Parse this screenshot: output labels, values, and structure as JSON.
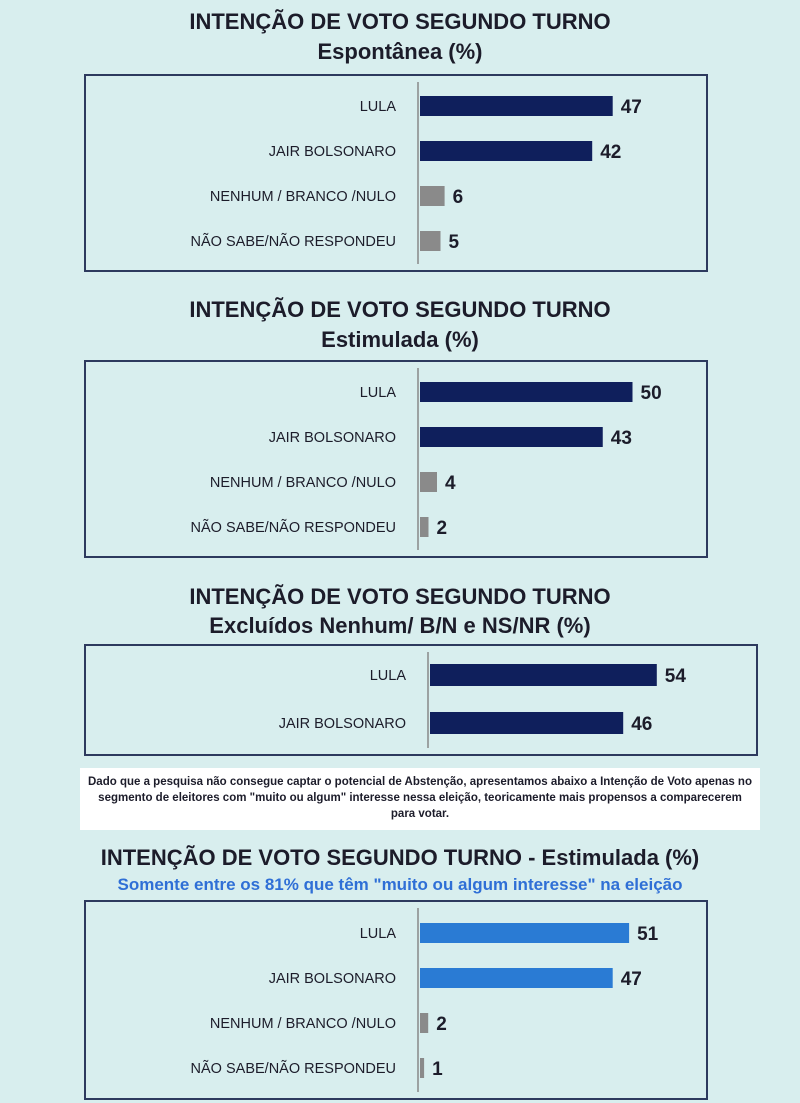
{
  "chart_data": [
    {
      "type": "bar",
      "title": "INTENÇÃO DE VOTO SEGUNDO TURNO",
      "subtitle": "Espontânea (%)",
      "categories": [
        "LULA",
        "JAIR BOLSONARO",
        "NENHUM / BRANCO /NULO",
        "NÃO SABE/NÃO RESPONDEU"
      ],
      "values": [
        47,
        42,
        6,
        5
      ],
      "colors": [
        "#0f1f5c",
        "#0f1f5c",
        "#8a8a8a",
        "#8a8a8a"
      ]
    },
    {
      "type": "bar",
      "title": "INTENÇÃO DE VOTO SEGUNDO TURNO",
      "subtitle": "Estimulada (%)",
      "categories": [
        "LULA",
        "JAIR BOLSONARO",
        "NENHUM / BRANCO /NULO",
        "NÃO SABE/NÃO RESPONDEU"
      ],
      "values": [
        50,
        43,
        4,
        2
      ],
      "colors": [
        "#0f1f5c",
        "#0f1f5c",
        "#8a8a8a",
        "#8a8a8a"
      ]
    },
    {
      "type": "bar",
      "title": "INTENÇÃO DE VOTO SEGUNDO TURNO",
      "subtitle": "Excluídos Nenhum/ B/N e NS/NR (%)",
      "categories": [
        "LULA",
        "JAIR BOLSONARO"
      ],
      "values": [
        54,
        46
      ],
      "colors": [
        "#0f1f5c",
        "#0f1f5c"
      ]
    },
    {
      "type": "bar",
      "title": "INTENÇÃO DE VOTO SEGUNDO TURNO - Estimulada (%)",
      "subtitle": "Somente entre os 81% que têm \"muito ou algum interesse\" na eleição",
      "categories": [
        "LULA",
        "JAIR BOLSONARO",
        "NENHUM / BRANCO /NULO",
        "NÃO SABE/NÃO RESPONDEU"
      ],
      "values": [
        51,
        47,
        2,
        1
      ],
      "colors": [
        "#2a7bd4",
        "#2a7bd4",
        "#8a8a8a",
        "#8a8a8a"
      ]
    }
  ],
  "note": "Dado que a pesquisa não consegue captar o potencial de Abstenção, apresentamos abaixo a Intenção de Voto apenas no segmento de eleitores com \"muito ou algum\" interesse nessa eleição, teoricamente mais propensos a comparecerem para votar."
}
